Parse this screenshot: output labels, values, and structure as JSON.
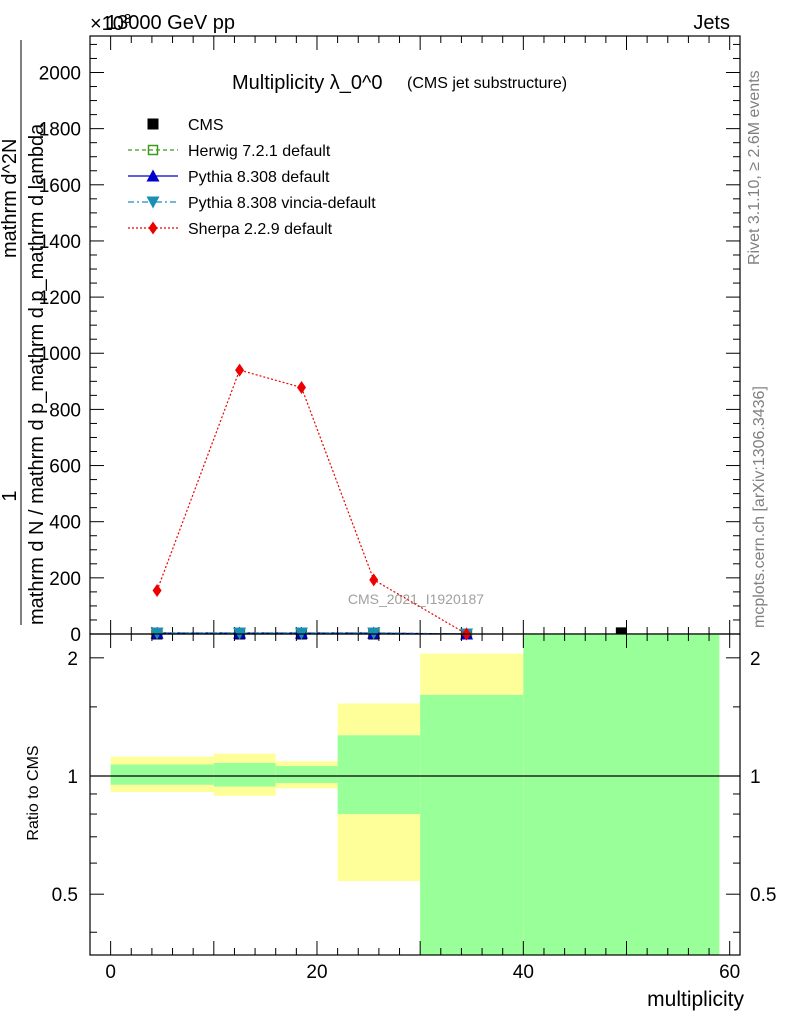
{
  "header": {
    "left": "13000 GeV pp",
    "right": "Jets",
    "exponent": "×10"
  },
  "side_text": {
    "rivet": "Rivet 3.1.10, ≥ 2.6M events",
    "mcplots": "mcplots.cern.ch [arXiv:1306.3436]"
  },
  "chart_data": [
    {
      "type": "line",
      "title": "Multiplicity λ_0^0",
      "subtitle": "(CMS jet substructure)",
      "watermark": "CMS_2021_I1920187",
      "ylabel_top": "1",
      "ylabel_bottom": "mathrm d N / mathrm d p_mathrm d p_mathrm d lambda",
      "ylabel_num": "mathrm d^2N",
      "ylim": [
        0,
        2130
      ],
      "xlim": [
        -2,
        61
      ],
      "yticks": [
        0,
        200,
        400,
        600,
        800,
        1000,
        1200,
        1400,
        1600,
        1800,
        2000
      ],
      "ytick_labels": [
        "0",
        "200",
        "400",
        "600",
        "800",
        "1000",
        "1200",
        "1400",
        "1600",
        "1800",
        "2000"
      ],
      "legend_position": "top-left",
      "series": [
        {
          "name": "CMS",
          "color": "#000000",
          "marker": "square",
          "x": [
            4.5,
            12.5,
            18.5,
            25.5,
            34.5,
            49.5
          ],
          "y": [
            0,
            0,
            0,
            0,
            0,
            4
          ]
        },
        {
          "name": "Herwig 7.2.1 default",
          "color": "#3a9a1a",
          "marker": "open-square",
          "dash": "4,3",
          "x": [
            4.5,
            12.5,
            18.5,
            25.5,
            34.5
          ],
          "y": [
            4,
            4,
            4,
            4,
            0
          ]
        },
        {
          "name": "Pythia 8.308 default",
          "color": "#0000cc",
          "marker": "triangle-up",
          "dash": "",
          "x": [
            4.5,
            12.5,
            18.5,
            25.5,
            34.5
          ],
          "y": [
            3,
            3,
            3,
            3,
            0
          ]
        },
        {
          "name": "Pythia 8.308 vincia-default",
          "color": "#1a8fb5",
          "marker": "triangle-down",
          "dash": "6,3,2,3",
          "x": [
            4.5,
            12.5,
            18.5,
            25.5,
            34.5
          ],
          "y": [
            3,
            3,
            3,
            3,
            0
          ]
        },
        {
          "name": "Sherpa 2.2.9 default",
          "color": "#ee0000",
          "marker": "diamond",
          "dash": "2,2",
          "x": [
            4.5,
            12.5,
            18.5,
            25.5,
            34.5
          ],
          "y": [
            155,
            940,
            878,
            193,
            0
          ]
        }
      ]
    },
    {
      "type": "area",
      "ylabel": "Ratio to CMS",
      "xlabel": "multiplicity",
      "ylim": [
        0.35,
        2.3
      ],
      "xlim": [
        -2,
        61
      ],
      "yticks": [
        0.5,
        1,
        2
      ],
      "ytick_labels": [
        "0.5",
        "1",
        "2"
      ],
      "xticks": [
        0,
        20,
        40,
        60
      ],
      "xtick_labels": [
        "0",
        "20",
        "40",
        "60"
      ],
      "bins": [
        {
          "xlo": 0,
          "xhi": 10,
          "inner": [
            0.95,
            1.07
          ],
          "outer": [
            0.91,
            1.12
          ]
        },
        {
          "xlo": 10,
          "xhi": 16,
          "inner": [
            0.94,
            1.08
          ],
          "outer": [
            0.89,
            1.14
          ]
        },
        {
          "xlo": 16,
          "xhi": 22,
          "inner": [
            0.96,
            1.06
          ],
          "outer": [
            0.93,
            1.09
          ]
        },
        {
          "xlo": 22,
          "xhi": 30,
          "inner": [
            0.8,
            1.27
          ],
          "outer": [
            0.54,
            1.53
          ],
          "outer_gap": [
            0.8,
            1.27
          ]
        },
        {
          "xlo": 30,
          "xhi": 40,
          "inner": [
            0.35,
            1.61
          ],
          "outer": [
            0.35,
            2.05
          ],
          "outer_gap": [
            0.43,
            1.61
          ]
        },
        {
          "xlo": 40,
          "xhi": 59,
          "inner": [
            0.35,
            2.3
          ],
          "outer": [
            0.35,
            2.3
          ]
        }
      ],
      "inner_color": "#99ff99",
      "outer_color": "#ffff99",
      "reference": 1
    }
  ]
}
